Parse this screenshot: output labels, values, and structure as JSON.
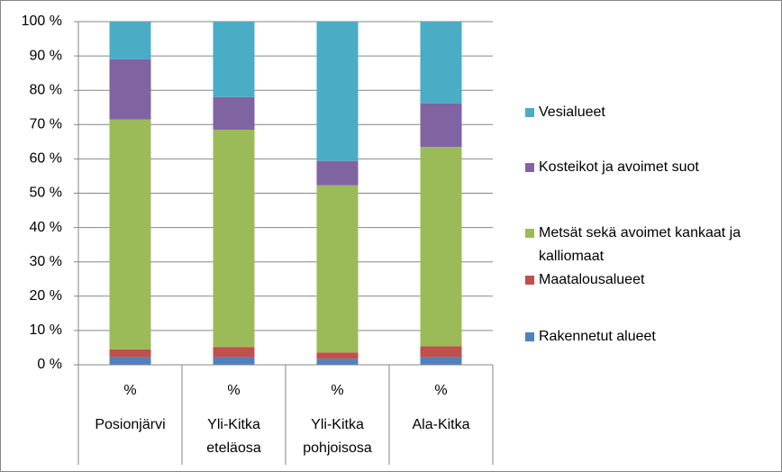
{
  "chart_data": {
    "type": "stacked_bar_100",
    "categories": [
      "Posionjärvi",
      "Yli-Kitka eteläosa",
      "Yli-Kitka pohjoisosa",
      "Ala-Kitka"
    ],
    "subcategories": [
      "%",
      "%",
      "%",
      "%"
    ],
    "series": [
      {
        "name": "Rakennetut alueet",
        "color": "#4f81bd",
        "values": [
          2.2,
          2.2,
          1.8,
          2.2
        ]
      },
      {
        "name": "Maatalousalueet",
        "color": "#c0504d",
        "values": [
          2.3,
          3,
          1.8,
          3.2
        ]
      },
      {
        "name": "Metsät sekä avoimet kankaat ja kalliomaat",
        "color": "#9bbb59",
        "values": [
          67,
          63.3,
          48.7,
          58.1
        ]
      },
      {
        "name": "Kosteikot ja avoimet suot",
        "color": "#8064a2",
        "values": [
          17.5,
          9.5,
          7.1,
          12.7
        ]
      },
      {
        "name": "Vesialueet",
        "color": "#4bacc6",
        "values": [
          11,
          22,
          40.6,
          23.8
        ]
      }
    ],
    "ylim": [
      0,
      100
    ],
    "yticks": [
      {
        "value": 0,
        "label": "0 %"
      },
      {
        "value": 10,
        "label": "10 %"
      },
      {
        "value": 20,
        "label": "20 %"
      },
      {
        "value": 30,
        "label": "30 %"
      },
      {
        "value": 40,
        "label": "40 %"
      },
      {
        "value": 50,
        "label": "50 %"
      },
      {
        "value": 60,
        "label": "60 %"
      },
      {
        "value": 70,
        "label": "70 %"
      },
      {
        "value": 80,
        "label": "80 %"
      },
      {
        "value": 90,
        "label": "90 %"
      },
      {
        "value": 100,
        "label": "100 %"
      }
    ],
    "grid": true,
    "legend": "right"
  }
}
